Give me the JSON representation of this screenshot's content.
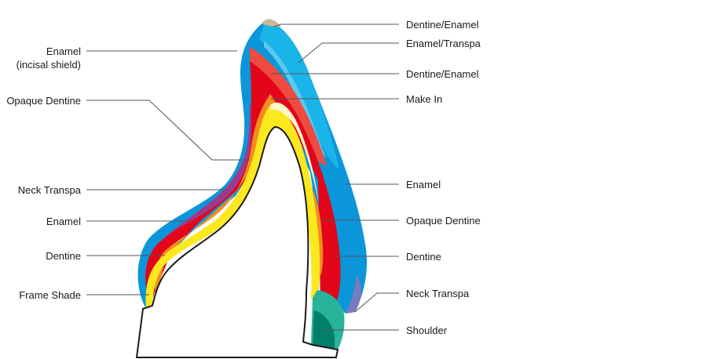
{
  "diagram": {
    "type": "cross-section",
    "subject": "tooth layering",
    "layers": [
      {
        "name": "enamel-outer",
        "color": "#0b96d9"
      },
      {
        "name": "enamel-transpa",
        "color": "#1ab5e8"
      },
      {
        "name": "dentine-enamel",
        "color": "#c7b79a"
      },
      {
        "name": "enamel-incisal",
        "color": "#ef4b40"
      },
      {
        "name": "dentine",
        "color": "#e3051a"
      },
      {
        "name": "opaque-dentine",
        "color": "#f28c1e"
      },
      {
        "name": "frame-shade",
        "color": "#fbe81e"
      },
      {
        "name": "neck-transpa-left",
        "color": "#9e3a8c"
      },
      {
        "name": "neck-transpa-right",
        "color": "#7a7abf"
      },
      {
        "name": "shoulder-light",
        "color": "#27b49a"
      },
      {
        "name": "shoulder-dark",
        "color": "#007f6a"
      }
    ]
  },
  "labels": {
    "left": {
      "enamel_incisal_1": "Enamel",
      "enamel_incisal_2": "(incisal shield)",
      "opaque_dentine": "Opaque Dentine",
      "neck_transpa": "Neck Transpa",
      "enamel": "Enamel",
      "dentine": "Dentine",
      "frame_shade": "Frame Shade"
    },
    "right": {
      "dentine_enamel_top": "Dentine/Enamel",
      "enamel_transpa": "Enamel/Transpa",
      "dentine_enamel": "Dentine/Enamel",
      "make_in": "Make In",
      "enamel": "Enamel",
      "opaque_dentine": "Opaque Dentine",
      "dentine": "Dentine",
      "neck_transpa": "Neck Transpa",
      "shoulder": "Shoulder"
    }
  }
}
